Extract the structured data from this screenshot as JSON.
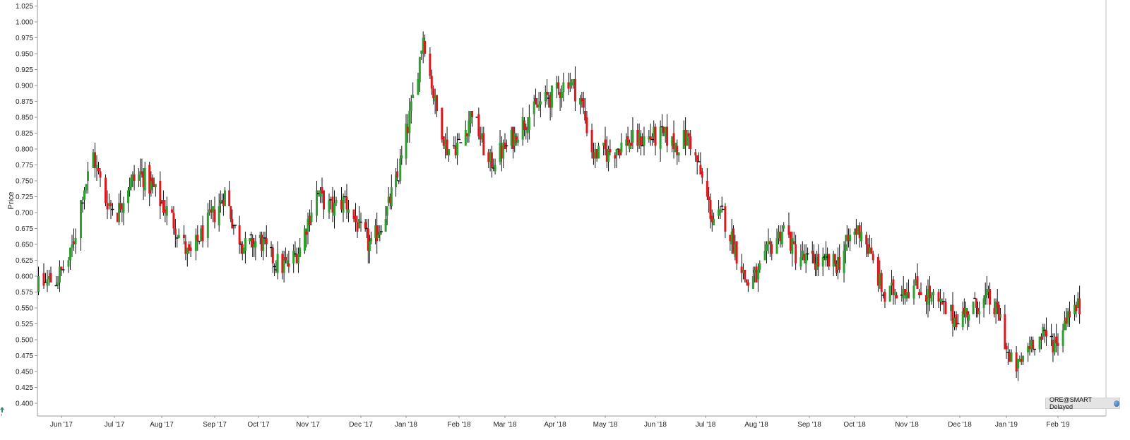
{
  "chart_data": {
    "type": "candlestick",
    "ylabel": "Price",
    "ylim": [
      0.38,
      1.03
    ],
    "y_ticks": [
      "0.400",
      "0.425",
      "0.450",
      "0.475",
      "0.500",
      "0.525",
      "0.550",
      "0.575",
      "0.600",
      "0.625",
      "0.650",
      "0.675",
      "0.700",
      "0.725",
      "0.750",
      "0.775",
      "0.800",
      "0.825",
      "0.850",
      "0.875",
      "0.900",
      "0.925",
      "0.950",
      "0.975",
      "1.000",
      "1.025"
    ],
    "x_ticks": [
      "Jun '17",
      "Jul '17",
      "Aug '17",
      "Sep '17",
      "Oct '17",
      "Nov '17",
      "Dec '17",
      "Jan '18",
      "Feb '18",
      "Mar '18",
      "Apr '18",
      "May '18",
      "Jun '18",
      "Jul '18",
      "Aug '18",
      "Sep '18",
      "Oct '18",
      "Nov '18",
      "Dec '18",
      "Jan '19",
      "Feb '19"
    ],
    "grid": false,
    "colors": {
      "up": "#2ca02c",
      "down": "#e0161b",
      "wick": "#111111"
    },
    "anchors": [
      [
        "2017-05-22",
        0.56
      ],
      [
        "2017-06-01",
        0.585
      ],
      [
        "2017-06-12",
        0.595
      ],
      [
        "2017-06-20",
        0.63
      ],
      [
        "2017-06-27",
        0.73
      ],
      [
        "2017-07-03",
        0.79
      ],
      [
        "2017-07-10",
        0.72
      ],
      [
        "2017-07-17",
        0.7
      ],
      [
        "2017-07-24",
        0.745
      ],
      [
        "2017-08-01",
        0.76
      ],
      [
        "2017-08-10",
        0.735
      ],
      [
        "2017-08-21",
        0.69
      ],
      [
        "2017-08-31",
        0.63
      ],
      [
        "2017-09-07",
        0.665
      ],
      [
        "2017-09-14",
        0.695
      ],
      [
        "2017-09-22",
        0.73
      ],
      [
        "2017-09-29",
        0.675
      ],
      [
        "2017-10-06",
        0.645
      ],
      [
        "2017-10-16",
        0.655
      ],
      [
        "2017-10-26",
        0.62
      ],
      [
        "2017-11-02",
        0.615
      ],
      [
        "2017-11-10",
        0.645
      ],
      [
        "2017-11-20",
        0.73
      ],
      [
        "2017-11-28",
        0.705
      ],
      [
        "2017-12-06",
        0.72
      ],
      [
        "2017-12-14",
        0.675
      ],
      [
        "2017-12-22",
        0.645
      ],
      [
        "2018-01-02",
        0.705
      ],
      [
        "2018-01-10",
        0.76
      ],
      [
        "2018-01-18",
        0.86
      ],
      [
        "2018-01-25",
        0.98
      ],
      [
        "2018-02-01",
        0.87
      ],
      [
        "2018-02-08",
        0.8
      ],
      [
        "2018-02-16",
        0.81
      ],
      [
        "2018-02-23",
        0.86
      ],
      [
        "2018-03-05",
        0.775
      ],
      [
        "2018-03-15",
        0.8
      ],
      [
        "2018-03-26",
        0.84
      ],
      [
        "2018-04-05",
        0.87
      ],
      [
        "2018-04-16",
        0.89
      ],
      [
        "2018-04-23",
        0.91
      ],
      [
        "2018-04-30",
        0.88
      ],
      [
        "2018-05-08",
        0.79
      ],
      [
        "2018-05-17",
        0.795
      ],
      [
        "2018-05-28",
        0.81
      ],
      [
        "2018-06-08",
        0.815
      ],
      [
        "2018-06-19",
        0.82
      ],
      [
        "2018-06-28",
        0.805
      ],
      [
        "2018-07-05",
        0.82
      ],
      [
        "2018-07-12",
        0.76
      ],
      [
        "2018-07-19",
        0.69
      ],
      [
        "2018-07-26",
        0.695
      ],
      [
        "2018-08-02",
        0.645
      ],
      [
        "2018-08-09",
        0.59
      ],
      [
        "2018-08-16",
        0.6
      ],
      [
        "2018-08-24",
        0.65
      ],
      [
        "2018-08-31",
        0.675
      ],
      [
        "2018-09-07",
        0.635
      ],
      [
        "2018-09-14",
        0.625
      ],
      [
        "2018-09-24",
        0.62
      ],
      [
        "2018-10-04",
        0.62
      ],
      [
        "2018-10-12",
        0.66
      ],
      [
        "2018-10-19",
        0.675
      ],
      [
        "2018-10-26",
        0.62
      ],
      [
        "2018-11-02",
        0.565
      ],
      [
        "2018-11-12",
        0.585
      ],
      [
        "2018-11-22",
        0.58
      ],
      [
        "2018-12-03",
        0.555
      ],
      [
        "2018-12-12",
        0.535
      ],
      [
        "2018-12-21",
        0.545
      ],
      [
        "2019-01-02",
        0.565
      ],
      [
        "2019-01-11",
        0.535
      ],
      [
        "2019-01-17",
        0.465
      ],
      [
        "2019-01-22",
        0.455
      ],
      [
        "2019-01-29",
        0.495
      ],
      [
        "2019-02-07",
        0.505
      ],
      [
        "2019-02-14",
        0.495
      ],
      [
        "2019-02-21",
        0.545
      ],
      [
        "2019-02-28",
        0.55
      ]
    ]
  },
  "badge": {
    "text": "ORE@SMART Delayed",
    "icon": "globe-icon"
  },
  "corner_icon": "arrow-icon"
}
